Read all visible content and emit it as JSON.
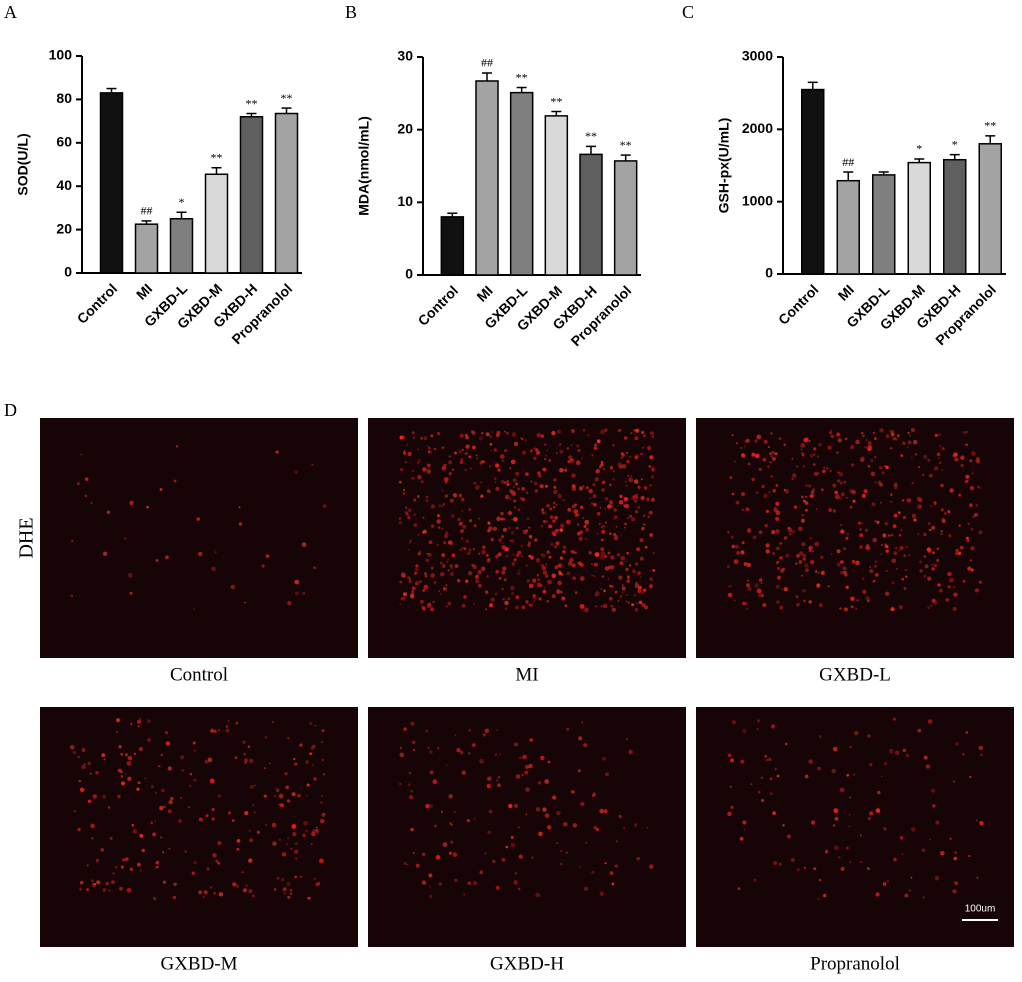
{
  "chart_data": [
    {
      "type": "bar",
      "panel": "A",
      "ylabel": "SOD(U/L)",
      "categories": [
        "Control",
        "MI",
        "GXBD-L",
        "GXBD-M",
        "GXBD-H",
        "Propranolol"
      ],
      "values": [
        83,
        22.5,
        25,
        45.5,
        72,
        73.5
      ],
      "errors": [
        2,
        1.5,
        3,
        3,
        1.5,
        2.5
      ],
      "annotations": [
        null,
        "##",
        "*",
        "**",
        "**",
        "**"
      ],
      "colors": [
        "#111111",
        "#a3a3a3",
        "#7f7f7f",
        "#d9d9d9",
        "#5f5f5f",
        "#a3a3a3"
      ],
      "ylim": [
        0,
        100
      ],
      "yticks": [
        0,
        20,
        40,
        60,
        80,
        100
      ]
    },
    {
      "type": "bar",
      "panel": "B",
      "ylabel": "MDA(nmol/mL)",
      "categories": [
        "Control",
        "MI",
        "GXBD-L",
        "GXBD-M",
        "GXBD-H",
        "Propranolol"
      ],
      "values": [
        8,
        26.7,
        25.1,
        21.9,
        16.6,
        15.7
      ],
      "errors": [
        0.5,
        1.1,
        0.7,
        0.6,
        1.1,
        0.8
      ],
      "annotations": [
        null,
        "##",
        "**",
        "**",
        "**",
        "**"
      ],
      "colors": [
        "#111111",
        "#a3a3a3",
        "#7f7f7f",
        "#d9d9d9",
        "#5f5f5f",
        "#a3a3a3"
      ],
      "ylim": [
        0,
        30
      ],
      "yticks": [
        0,
        10,
        20,
        30
      ]
    },
    {
      "type": "bar",
      "panel": "C",
      "ylabel": "GSH-px(U/mL)",
      "categories": [
        "Control",
        "MI",
        "GXBD-L",
        "GXBD-M",
        "GXBD-H",
        "Propranolol"
      ],
      "values": [
        2550,
        1290,
        1370,
        1540,
        1580,
        1800
      ],
      "errors": [
        100,
        120,
        40,
        50,
        70,
        110
      ],
      "annotations": [
        null,
        "##",
        null,
        "*",
        "*",
        "**"
      ],
      "colors": [
        "#111111",
        "#a3a3a3",
        "#7f7f7f",
        "#d9d9d9",
        "#5f5f5f",
        "#a3a3a3"
      ],
      "ylim": [
        0,
        3000
      ],
      "yticks": [
        0,
        1000,
        2000,
        3000
      ]
    }
  ],
  "panel_d": {
    "panel": "D",
    "row_label": "DHE",
    "scale_bar": "100um",
    "images": [
      "Control",
      "MI",
      "GXBD-L",
      "GXBD-M",
      "GXBD-H",
      "Propranolol"
    ]
  }
}
